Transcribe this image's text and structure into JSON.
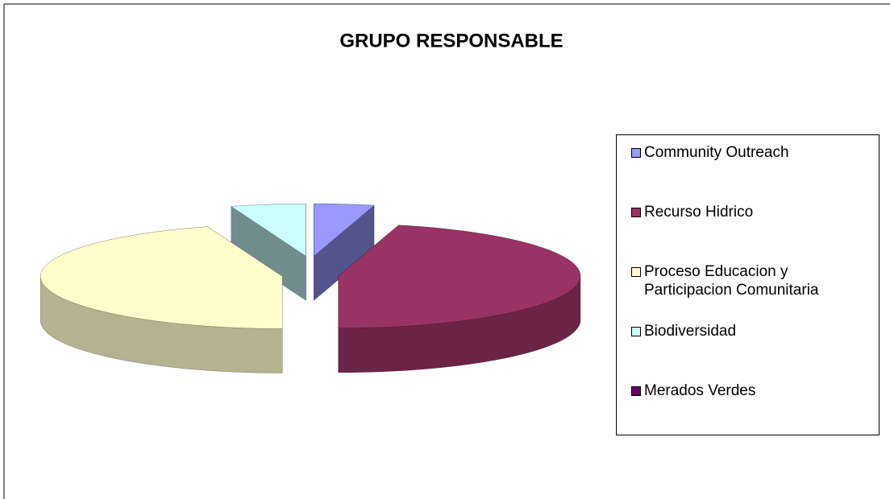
{
  "chart_data": {
    "type": "pie",
    "title": "GRUPO RESPONSABLE",
    "categories": [
      "Community Outreach",
      "Recurso Hidrico",
      "Proceso Educacion y Participacion Comunitaria",
      "Biodiversidad",
      "Merados Verdes"
    ],
    "values": [
      4,
      46,
      45,
      5,
      0
    ],
    "colors": [
      "#9999ff",
      "#993366",
      "#ffffcc",
      "#ccffff",
      "#660066"
    ],
    "legend": "right"
  }
}
